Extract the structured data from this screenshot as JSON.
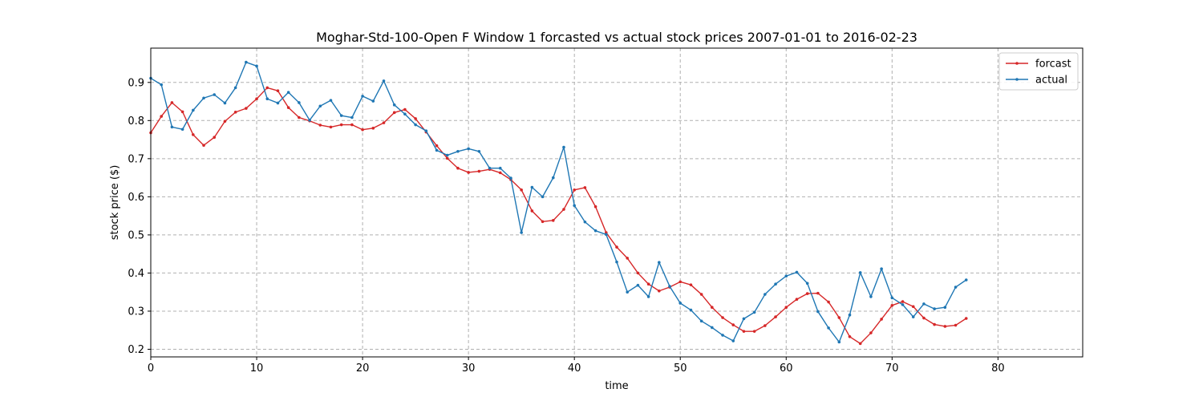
{
  "chart_data": {
    "type": "line",
    "title": "Moghar-Std-100-Open F Window 1 forcasted vs actual stock prices 2007-01-01 to 2016-02-23",
    "xlabel": "time",
    "ylabel": "stock price ($)",
    "xlim": [
      0,
      88
    ],
    "ylim": [
      0.18,
      0.99
    ],
    "xticks": [
      0,
      10,
      20,
      30,
      40,
      50,
      60,
      70,
      80
    ],
    "yticks": [
      0.2,
      0.3,
      0.4,
      0.5,
      0.6,
      0.7,
      0.8,
      0.9
    ],
    "grid": true,
    "legend_position": "top-right",
    "series": [
      {
        "name": "forcast",
        "color": "#d62728",
        "values": [
          0.768,
          0.811,
          0.847,
          0.823,
          0.763,
          0.735,
          0.756,
          0.798,
          0.822,
          0.832,
          0.857,
          0.886,
          0.878,
          0.834,
          0.808,
          0.799,
          0.788,
          0.783,
          0.789,
          0.789,
          0.776,
          0.78,
          0.794,
          0.821,
          0.829,
          0.805,
          0.77,
          0.734,
          0.701,
          0.675,
          0.664,
          0.667,
          0.672,
          0.663,
          0.645,
          0.618,
          0.563,
          0.535,
          0.538,
          0.567,
          0.618,
          0.624,
          0.574,
          0.506,
          0.468,
          0.439,
          0.4,
          0.371,
          0.353,
          0.363,
          0.377,
          0.369,
          0.344,
          0.31,
          0.283,
          0.264,
          0.247,
          0.247,
          0.262,
          0.285,
          0.31,
          0.331,
          0.346,
          0.347,
          0.324,
          0.283,
          0.233,
          0.215,
          0.243,
          0.279,
          0.315,
          0.325,
          0.312,
          0.282,
          0.265,
          0.26,
          0.263,
          0.281
        ]
      },
      {
        "name": "actual",
        "color": "#1f77b4",
        "values": [
          0.911,
          0.894,
          0.783,
          0.777,
          0.827,
          0.859,
          0.868,
          0.846,
          0.886,
          0.953,
          0.943,
          0.857,
          0.846,
          0.874,
          0.847,
          0.801,
          0.838,
          0.853,
          0.813,
          0.808,
          0.864,
          0.851,
          0.904,
          0.841,
          0.817,
          0.789,
          0.773,
          0.722,
          0.709,
          0.719,
          0.726,
          0.719,
          0.675,
          0.675,
          0.649,
          0.506,
          0.625,
          0.6,
          0.65,
          0.73,
          0.577,
          0.534,
          0.511,
          0.501,
          0.429,
          0.35,
          0.368,
          0.338,
          0.428,
          0.365,
          0.321,
          0.303,
          0.274,
          0.257,
          0.237,
          0.222,
          0.28,
          0.297,
          0.344,
          0.371,
          0.392,
          0.402,
          0.373,
          0.299,
          0.256,
          0.219,
          0.29,
          0.401,
          0.338,
          0.411,
          0.335,
          0.317,
          0.285,
          0.319,
          0.306,
          0.31,
          0.363,
          0.382
        ]
      }
    ]
  }
}
